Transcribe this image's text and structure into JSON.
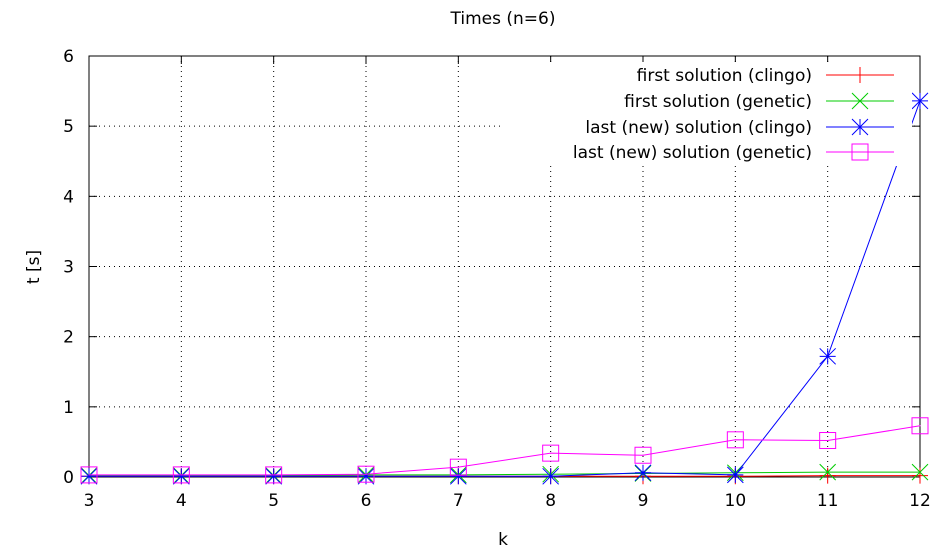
{
  "chart_data": {
    "type": "line",
    "title": "Times (n=6)",
    "xlabel": "k",
    "ylabel": "t [s]",
    "xlim": [
      3,
      12
    ],
    "ylim": [
      0,
      6
    ],
    "x_ticks": [
      3,
      4,
      5,
      6,
      7,
      8,
      9,
      10,
      11,
      12
    ],
    "y_ticks": [
      0,
      1,
      2,
      3,
      4,
      5,
      6
    ],
    "grid": true,
    "legend_position": "top-right",
    "x": [
      3,
      4,
      5,
      6,
      7,
      8,
      9,
      10,
      11,
      12
    ],
    "series": [
      {
        "name": "first solution (clingo)",
        "color": "#ff0000",
        "marker": "plus",
        "values": [
          0.01,
          0.01,
          0.01,
          0.01,
          0.01,
          0.01,
          0.01,
          0.01,
          0.02,
          0.02
        ]
      },
      {
        "name": "first solution (genetic)",
        "color": "#00cc00",
        "marker": "cross",
        "values": [
          0.02,
          0.02,
          0.02,
          0.03,
          0.03,
          0.04,
          0.05,
          0.06,
          0.07,
          0.07
        ]
      },
      {
        "name": "last (new) solution (clingo)",
        "color": "#0000ff",
        "marker": "star",
        "values": [
          0.01,
          0.01,
          0.01,
          0.01,
          0.01,
          0.01,
          0.06,
          0.03,
          1.72,
          5.36
        ]
      },
      {
        "name": "last (new) solution (genetic)",
        "color": "#ff00ff",
        "marker": "square",
        "values": [
          0.03,
          0.03,
          0.03,
          0.04,
          0.14,
          0.34,
          0.31,
          0.53,
          0.52,
          0.73
        ]
      }
    ]
  }
}
